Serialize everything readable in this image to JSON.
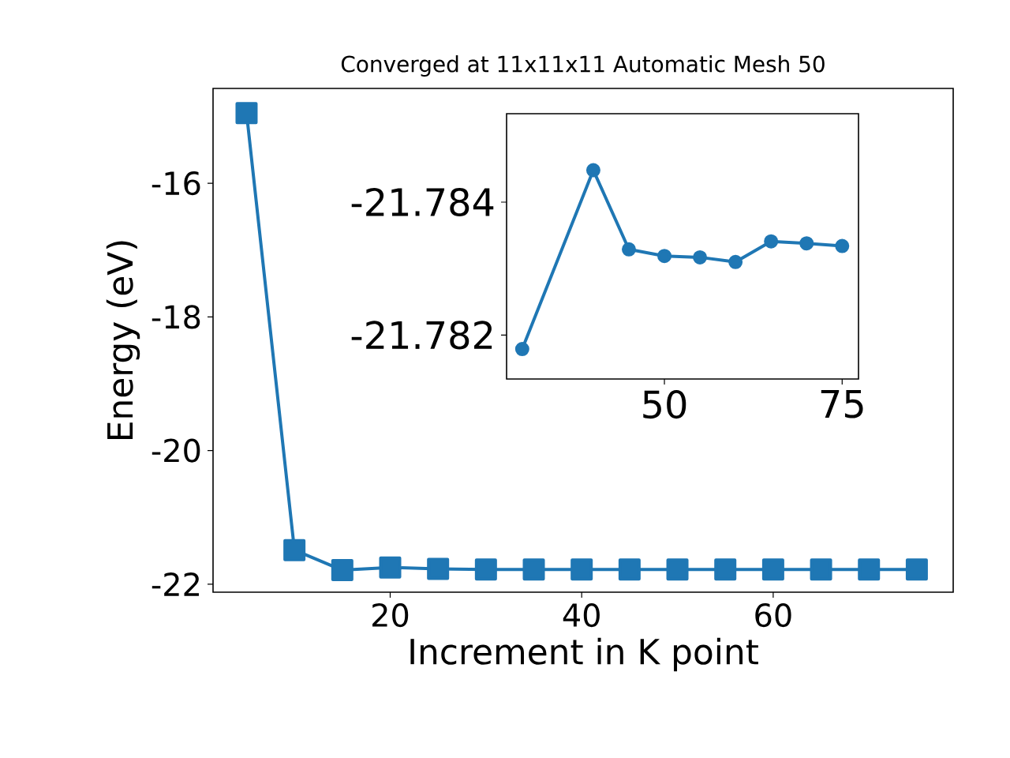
{
  "chart_data": [
    {
      "type": "line",
      "title": "Converged at 11x11x11 Automatic Mesh 50",
      "xlabel": "Increment in K point",
      "ylabel": "Energy (eV)",
      "color": "#1f77b4",
      "marker": "square",
      "x": [
        5,
        10,
        15,
        20,
        25,
        30,
        35,
        40,
        45,
        50,
        55,
        60,
        65,
        70,
        75
      ],
      "values": [
        -14.95,
        -21.49,
        -21.79,
        -21.75,
        -21.77,
        -21.78,
        -21.78,
        -21.78,
        -21.78,
        -21.78,
        -21.78,
        -21.78,
        -21.78,
        -21.78,
        -21.78
      ],
      "xlim": [
        1.5,
        78.8
      ],
      "ylim": [
        -22.12,
        -14.58
      ],
      "xticks": [
        20,
        40,
        60
      ],
      "yticks": [
        -22,
        -20,
        -18,
        -16
      ]
    },
    {
      "type": "line",
      "color": "#1f77b4",
      "marker": "circle",
      "x": [
        30,
        40,
        45,
        50,
        55,
        60,
        65,
        70,
        75
      ],
      "values": [
        -21.78179,
        -21.78448,
        -21.78329,
        -21.78319,
        -21.78317,
        -21.7831,
        -21.78341,
        -21.78338,
        -21.78334
      ],
      "xlim": [
        27.8,
        77.3
      ],
      "ylim": [
        -21.78134,
        -21.78533
      ],
      "xticks": [
        50,
        75
      ],
      "yticks": [
        -21.784,
        -21.782
      ]
    }
  ]
}
